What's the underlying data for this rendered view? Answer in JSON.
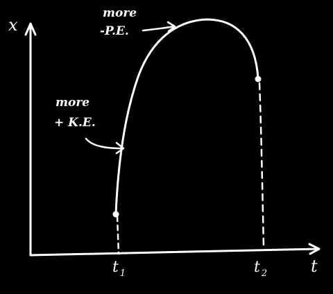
{
  "axes": {
    "y_label": "x",
    "x_label": "t"
  },
  "annotations": {
    "top": {
      "line1": "more",
      "line2": "-P.E."
    },
    "left": {
      "line1": "more",
      "line2": "+ K.E."
    }
  },
  "ticks": [
    {
      "main": "t",
      "sub": "1"
    },
    {
      "main": "t",
      "sub": "2"
    }
  ],
  "colors": {
    "background": "#000000",
    "ink": "#ffffff"
  }
}
